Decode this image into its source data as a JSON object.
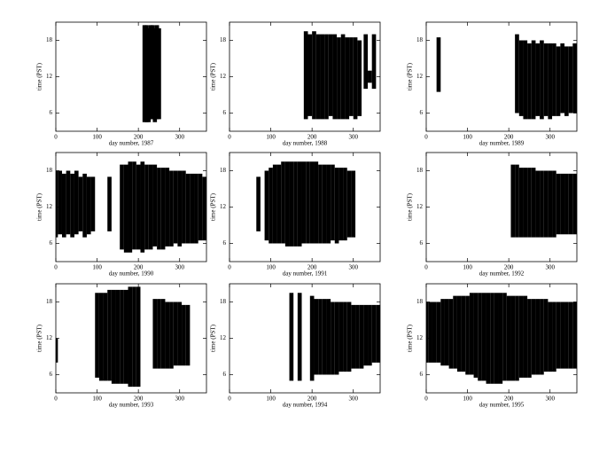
{
  "chart_data": [
    {
      "type": "range",
      "xlabel": "day number, 1987",
      "ylabel": "time (PST)",
      "xlim": [
        0,
        365
      ],
      "ylim": [
        3,
        21
      ],
      "xticks": [
        0,
        100,
        200,
        300
      ],
      "yticks": [
        6,
        12,
        18
      ],
      "color": "#000000",
      "x": [
        215,
        220,
        225,
        230,
        235,
        240,
        245,
        250
      ],
      "low": [
        4.5,
        4.5,
        4.5,
        5,
        5,
        4.5,
        5,
        5
      ],
      "high": [
        20.5,
        20.5,
        20,
        20.5,
        20.5,
        20,
        20.5,
        20
      ]
    },
    {
      "type": "range",
      "xlabel": "day number, 1988",
      "ylabel": "time (PST)",
      "xlim": [
        0,
        365
      ],
      "ylim": [
        3,
        21
      ],
      "xticks": [
        0,
        100,
        200,
        300
      ],
      "yticks": [
        6,
        12,
        18
      ],
      "color": "#000000",
      "x": [
        185,
        195,
        205,
        215,
        225,
        235,
        245,
        255,
        265,
        275,
        285,
        295,
        305,
        315,
        330,
        340,
        350
      ],
      "low": [
        5,
        5.5,
        5,
        5,
        5,
        5,
        5.5,
        5,
        5,
        5,
        5,
        5.5,
        5,
        5.5,
        10,
        11,
        10
      ],
      "high": [
        19.5,
        19,
        19.5,
        19,
        19,
        19,
        19,
        19,
        18.5,
        19,
        18.5,
        18.5,
        18.5,
        18,
        19,
        13,
        19
      ]
    },
    {
      "type": "range",
      "xlabel": "day number, 1989",
      "ylabel": "time (PST)",
      "xlim": [
        0,
        365
      ],
      "ylim": [
        3,
        21
      ],
      "xticks": [
        0,
        100,
        200,
        300
      ],
      "yticks": [
        6,
        12,
        18
      ],
      "color": "#000000",
      "x": [
        30,
        220,
        230,
        240,
        250,
        260,
        270,
        280,
        290,
        300,
        310,
        320,
        330,
        340,
        350,
        360
      ],
      "low": [
        9.5,
        6,
        5.5,
        5,
        5,
        5,
        5.5,
        5,
        5.5,
        5,
        5.5,
        5.5,
        6,
        5.5,
        6,
        6
      ],
      "high": [
        18.5,
        19,
        18,
        18,
        17.5,
        18,
        17.5,
        18,
        17.5,
        17.5,
        17.5,
        17,
        17.5,
        17,
        17,
        17.5
      ]
    },
    {
      "type": "range",
      "xlabel": "day number, 1990",
      "ylabel": "time (PST)",
      "xlim": [
        0,
        365
      ],
      "ylim": [
        3,
        21
      ],
      "xticks": [
        0,
        100,
        200,
        300
      ],
      "yticks": [
        6,
        12,
        18
      ],
      "color": "#000000",
      "x": [
        0,
        10,
        20,
        30,
        40,
        50,
        60,
        70,
        80,
        90,
        130,
        160,
        170,
        180,
        190,
        200,
        210,
        220,
        230,
        240,
        250,
        260,
        270,
        280,
        290,
        300,
        310,
        320,
        330,
        340,
        350,
        360
      ],
      "low": [
        7,
        7.5,
        7,
        7.5,
        7,
        7.5,
        8,
        7,
        7.5,
        8,
        8,
        5,
        4.5,
        4.5,
        5,
        5,
        4.5,
        5,
        5,
        5.5,
        5,
        5,
        5.5,
        5.5,
        6,
        5.5,
        6,
        6,
        6,
        6,
        6.5,
        6.5
      ],
      "high": [
        18,
        18,
        17.5,
        18,
        17.5,
        18,
        17,
        17.5,
        17,
        17,
        17,
        19,
        19,
        19.5,
        19.5,
        19,
        19.5,
        19,
        19,
        19,
        18.5,
        18.5,
        18.5,
        18,
        18,
        18,
        18,
        17.5,
        17.5,
        17.5,
        17.5,
        17
      ]
    },
    {
      "type": "range",
      "xlabel": "day number, 1991",
      "ylabel": "time (PST)",
      "xlim": [
        0,
        365
      ],
      "ylim": [
        3,
        21
      ],
      "xticks": [
        0,
        100,
        200,
        300
      ],
      "yticks": [
        6,
        12,
        18
      ],
      "color": "#000000",
      "x": [
        70,
        90,
        100,
        110,
        120,
        130,
        140,
        150,
        160,
        170,
        180,
        190,
        200,
        210,
        220,
        230,
        240,
        250,
        260,
        270,
        280,
        290,
        300
      ],
      "low": [
        8,
        6.5,
        6,
        6,
        6,
        6,
        5.5,
        5.5,
        5.5,
        5.5,
        6,
        6,
        6,
        6,
        6,
        6,
        6,
        6.5,
        6,
        6.5,
        6.5,
        7,
        7
      ],
      "high": [
        17,
        18,
        18.5,
        19,
        19,
        19.5,
        19.5,
        19.5,
        19.5,
        19.5,
        19.5,
        19.5,
        19.5,
        19.5,
        19,
        19,
        19,
        19,
        18.5,
        18.5,
        18.5,
        18,
        18
      ]
    },
    {
      "type": "range",
      "xlabel": "day number, 1992",
      "ylabel": "time (PST)",
      "xlim": [
        0,
        365
      ],
      "ylim": [
        3,
        21
      ],
      "xticks": [
        0,
        100,
        200,
        300
      ],
      "yticks": [
        6,
        12,
        18
      ],
      "color": "#000000",
      "x": [
        210,
        220,
        230,
        240,
        250,
        260,
        270,
        280,
        290,
        300,
        310,
        320,
        330,
        340,
        350,
        360
      ],
      "low": [
        7,
        7,
        7,
        7,
        7,
        7,
        7,
        7,
        7,
        7,
        7,
        7.5,
        7.5,
        7.5,
        7.5,
        7.5
      ],
      "high": [
        19,
        19,
        18.5,
        18.5,
        18.5,
        18.5,
        18,
        18,
        18,
        18,
        18,
        17.5,
        17.5,
        17.5,
        17.5,
        17.5
      ]
    },
    {
      "type": "range",
      "xlabel": "day number, 1993",
      "ylabel": "time (PST)",
      "xlim": [
        0,
        365
      ],
      "ylim": [
        3,
        21
      ],
      "xticks": [
        0,
        100,
        200,
        300
      ],
      "yticks": [
        6,
        12,
        18
      ],
      "color": "#000000",
      "x": [
        0,
        100,
        110,
        120,
        130,
        140,
        150,
        160,
        170,
        180,
        190,
        200,
        240,
        250,
        260,
        270,
        280,
        290,
        300,
        310,
        320
      ],
      "low": [
        8,
        5.5,
        5,
        5,
        5,
        4.5,
        4.5,
        4.5,
        4.5,
        4,
        4,
        4,
        7,
        7,
        7,
        7,
        7,
        7.5,
        7.5,
        7.5,
        7.5
      ],
      "high": [
        12,
        19.5,
        19.5,
        19.5,
        20,
        20,
        20,
        20,
        20,
        20.5,
        20.5,
        20.5,
        18.5,
        18.5,
        18.5,
        18,
        18,
        18,
        18,
        17.5,
        17.5
      ]
    },
    {
      "type": "range",
      "xlabel": "day number, 1994",
      "ylabel": "time (PST)",
      "xlim": [
        0,
        365
      ],
      "ylim": [
        3,
        21
      ],
      "xticks": [
        0,
        100,
        200,
        300
      ],
      "yticks": [
        6,
        12,
        18
      ],
      "color": "#000000",
      "x": [
        150,
        170,
        200,
        210,
        220,
        230,
        240,
        250,
        260,
        270,
        280,
        290,
        300,
        310,
        320,
        330,
        340,
        350,
        360
      ],
      "low": [
        5,
        5,
        5,
        6,
        6,
        6,
        6,
        6,
        6,
        6.5,
        6.5,
        6.5,
        7,
        7,
        7,
        7.5,
        7.5,
        8,
        8
      ],
      "high": [
        19.5,
        19.5,
        19,
        18.5,
        18.5,
        18.5,
        18.5,
        18,
        18,
        18,
        18,
        18,
        17.5,
        17.5,
        17.5,
        17.5,
        17.5,
        17.5,
        17.5
      ]
    },
    {
      "type": "range",
      "xlabel": "day number, 1995",
      "ylabel": "time (PST)",
      "xlim": [
        0,
        365
      ],
      "ylim": [
        3,
        21
      ],
      "xticks": [
        0,
        100,
        200,
        300
      ],
      "yticks": [
        6,
        12,
        18
      ],
      "color": "#000000",
      "x": [
        0,
        10,
        20,
        30,
        40,
        50,
        60,
        70,
        80,
        90,
        100,
        110,
        120,
        130,
        140,
        150,
        160,
        170,
        180,
        190,
        200,
        210,
        220,
        230,
        240,
        250,
        260,
        270,
        280,
        290,
        300,
        310,
        320,
        330,
        340,
        350,
        360
      ],
      "low": [
        8,
        8,
        8,
        8,
        7.5,
        7.5,
        7,
        7,
        6.5,
        6.5,
        6,
        6,
        5.5,
        5,
        5,
        4.5,
        4.5,
        4.5,
        4.5,
        5,
        5,
        5,
        5,
        5.5,
        5.5,
        5.5,
        6,
        6,
        6,
        6.5,
        6.5,
        6.5,
        7,
        7,
        7,
        7,
        7
      ],
      "high": [
        18,
        18,
        18,
        18,
        18.5,
        18.5,
        18.5,
        19,
        19,
        19,
        19,
        19.5,
        19.5,
        19.5,
        19.5,
        19.5,
        19.5,
        19.5,
        19.5,
        19.5,
        19,
        19,
        19,
        19,
        19,
        18.5,
        18.5,
        18.5,
        18.5,
        18.5,
        18,
        18,
        18,
        18,
        18,
        18,
        18
      ]
    }
  ]
}
